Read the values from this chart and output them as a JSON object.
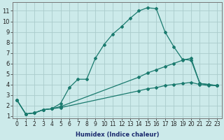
{
  "xlabel": "Humidex (Indice chaleur)",
  "bg_color": "#cceaea",
  "grid_color": "#aacccc",
  "line_color": "#1a7a6e",
  "marker": "D",
  "markersize": 2.0,
  "linewidth": 0.9,
  "xlim": [
    -0.5,
    23.5
  ],
  "ylim": [
    0.8,
    11.8
  ],
  "xticks": [
    0,
    1,
    2,
    3,
    4,
    5,
    6,
    7,
    8,
    9,
    10,
    11,
    12,
    13,
    14,
    15,
    16,
    17,
    18,
    19,
    20,
    21,
    22,
    23
  ],
  "yticks": [
    1,
    2,
    3,
    4,
    5,
    6,
    7,
    8,
    9,
    10,
    11
  ],
  "series": [
    {
      "x": [
        0,
        1,
        2,
        3,
        4,
        5,
        6,
        7,
        8,
        9,
        10,
        11,
        12,
        13,
        14,
        15,
        16,
        17,
        18,
        19,
        20,
        21,
        22,
        23
      ],
      "y": [
        2.5,
        1.2,
        1.3,
        1.6,
        1.7,
        2.2,
        3.7,
        4.5,
        4.5,
        6.5,
        7.8,
        8.8,
        9.5,
        10.3,
        11.0,
        11.3,
        11.2,
        9.0,
        7.6,
        6.4,
        6.3,
        4.1,
        4.0,
        3.9
      ]
    },
    {
      "x": [
        0,
        1,
        2,
        3,
        4,
        5,
        14,
        15,
        16,
        17,
        18,
        19,
        20,
        21,
        22,
        23
      ],
      "y": [
        2.5,
        1.2,
        1.3,
        1.6,
        1.7,
        1.9,
        4.7,
        5.1,
        5.4,
        5.7,
        6.0,
        6.3,
        6.5,
        4.1,
        4.0,
        3.9
      ]
    },
    {
      "x": [
        0,
        1,
        2,
        3,
        4,
        5,
        14,
        15,
        16,
        17,
        18,
        19,
        20,
        21,
        22,
        23
      ],
      "y": [
        2.5,
        1.2,
        1.3,
        1.6,
        1.7,
        1.8,
        3.4,
        3.6,
        3.7,
        3.9,
        4.0,
        4.1,
        4.2,
        4.0,
        3.9,
        3.9
      ]
    }
  ],
  "xlabel_fontsize": 6.0,
  "tick_fontsize": 5.5,
  "tick_fontsize_y": 6.0
}
